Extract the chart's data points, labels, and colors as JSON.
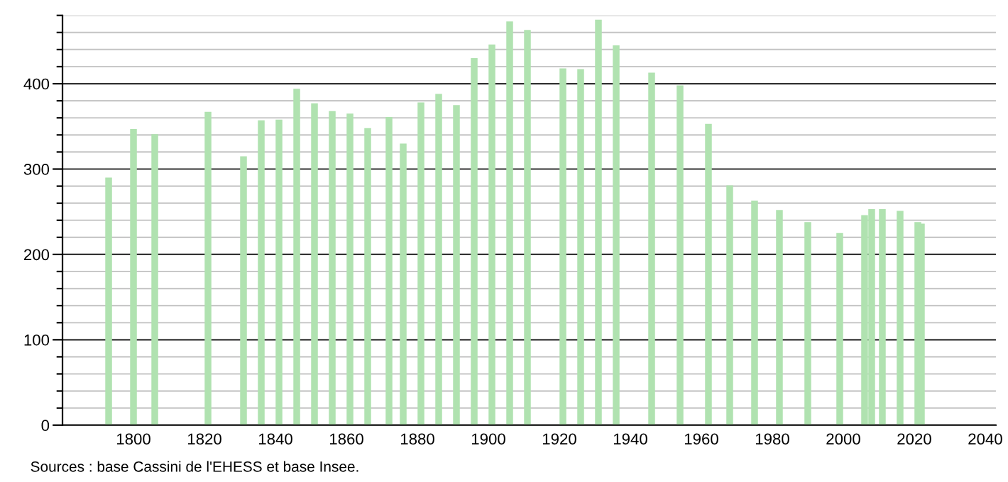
{
  "chart_data": {
    "type": "bar",
    "x": [
      1793,
      1800,
      1806,
      1821,
      1831,
      1836,
      1841,
      1846,
      1851,
      1856,
      1861,
      1866,
      1872,
      1876,
      1881,
      1886,
      1891,
      1896,
      1901,
      1906,
      1911,
      1921,
      1926,
      1931,
      1936,
      1946,
      1954,
      1962,
      1968,
      1975,
      1982,
      1990,
      1999,
      2006,
      2008,
      2011,
      2016,
      2021,
      2022
    ],
    "values": [
      290,
      347,
      341,
      367,
      315,
      357,
      358,
      394,
      377,
      368,
      365,
      348,
      361,
      330,
      378,
      388,
      375,
      430,
      446,
      473,
      463,
      418,
      417,
      475,
      445,
      413,
      398,
      353,
      281,
      263,
      252,
      238,
      225,
      246,
      253,
      253,
      251,
      238,
      236
    ],
    "color": "#b0e2b0",
    "xlim": [
      1780,
      2043
    ],
    "xticks": [
      1800,
      1820,
      1840,
      1860,
      1880,
      1900,
      1920,
      1940,
      1960,
      1980,
      2000,
      2020,
      2040
    ],
    "ylim": [
      0,
      480
    ],
    "yticks": [
      0,
      {
        "value": 20,
        "label": null
      },
      {
        "value": 40,
        "label": null
      },
      {
        "value": 60,
        "label": null
      },
      {
        "value": 80,
        "label": null
      },
      100,
      {
        "value": 120,
        "label": null
      },
      {
        "value": 140,
        "label": null
      },
      {
        "value": 160,
        "label": null
      },
      {
        "value": 180,
        "label": null
      },
      200,
      {
        "value": 220,
        "label": null
      },
      {
        "value": 240,
        "label": null
      },
      {
        "value": 260,
        "label": null
      },
      {
        "value": 280,
        "label": null
      },
      300,
      {
        "value": 320,
        "label": null
      },
      {
        "value": 340,
        "label": null
      },
      {
        "value": 360,
        "label": null
      },
      {
        "value": 380,
        "label": null
      },
      400,
      {
        "value": 420,
        "label": null
      },
      {
        "value": 440,
        "label": null
      },
      {
        "value": 460,
        "label": null
      },
      {
        "value": 480,
        "label": null
      }
    ],
    "grid": "y",
    "annotations": [
      "Sources : base Cassini de l'EHESS et base Insee."
    ]
  }
}
